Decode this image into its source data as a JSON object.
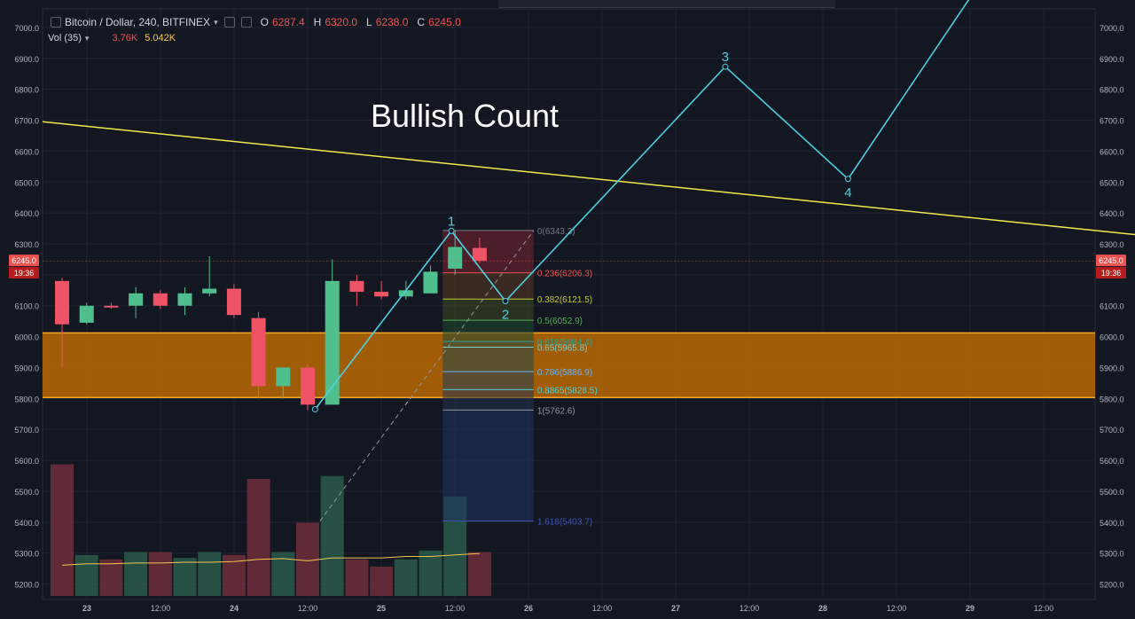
{
  "legend": {
    "symbol": "Bitcoin / Dollar, 240, BITFINEX",
    "open_label": "O",
    "open": "6287.4",
    "high_label": "H",
    "high": "6320.0",
    "low_label": "L",
    "low": "6238.0",
    "close_label": "C",
    "close": "6245.0",
    "vol_label": "Vol (35)",
    "vol_value": "3.76K",
    "vol_ma": "5.042K"
  },
  "colors": {
    "background": "#131722",
    "up": "#4fc08d",
    "down": "#ef5366",
    "trendline": "#f2e94e",
    "wave": "#4dd0e1",
    "zone": "#c86f00",
    "zone_border": "#f5a623"
  },
  "chart_data": {
    "type": "candlestick",
    "title": "Bullish Count",
    "y_tick_labels": [
      "5200.0",
      "5300.0",
      "5400.0",
      "5500.0",
      "5600.0",
      "5700.0",
      "5800.0",
      "5900.0",
      "6000.0",
      "6100.0",
      "6200.0",
      "6300.0",
      "6400.0",
      "6500.0",
      "6600.0",
      "6700.0",
      "6800.0",
      "6900.0",
      "7000.0"
    ],
    "ylim": [
      5150,
      7060
    ],
    "x_tick_labels": [
      "23",
      "12:00",
      "24",
      "12:00",
      "25",
      "12:00",
      "26",
      "12:00",
      "27",
      "12:00",
      "28",
      "12:00",
      "29",
      "12:00"
    ],
    "price_badge": "6245.0",
    "time_badge": "19:36",
    "candles": [
      {
        "o": 6180,
        "h": 6190,
        "l": 5900,
        "c": 6040
      },
      {
        "o": 6045,
        "h": 6110,
        "l": 6040,
        "c": 6100
      },
      {
        "o": 6100,
        "h": 6110,
        "l": 6090,
        "c": 6095
      },
      {
        "o": 6100,
        "h": 6160,
        "l": 6060,
        "c": 6140
      },
      {
        "o": 6140,
        "h": 6150,
        "l": 6090,
        "c": 6100
      },
      {
        "o": 6100,
        "h": 6160,
        "l": 6070,
        "c": 6140
      },
      {
        "o": 6140,
        "h": 6260,
        "l": 6130,
        "c": 6155
      },
      {
        "o": 6155,
        "h": 6170,
        "l": 6060,
        "c": 6070
      },
      {
        "o": 6060,
        "h": 6080,
        "l": 5800,
        "c": 5840
      },
      {
        "o": 5840,
        "h": 5900,
        "l": 5800,
        "c": 5900
      },
      {
        "o": 5900,
        "h": 5910,
        "l": 5762,
        "c": 5780
      },
      {
        "o": 5780,
        "h": 6250,
        "l": 5780,
        "c": 6180
      },
      {
        "o": 6180,
        "h": 6200,
        "l": 6100,
        "c": 6145
      },
      {
        "o": 6145,
        "h": 6180,
        "l": 6120,
        "c": 6130
      },
      {
        "o": 6130,
        "h": 6180,
        "l": 6120,
        "c": 6150
      },
      {
        "o": 6140,
        "h": 6230,
        "l": 6140,
        "c": 6210
      },
      {
        "o": 6220,
        "h": 6343,
        "l": 6200,
        "c": 6290
      },
      {
        "o": 6287,
        "h": 6320,
        "l": 6238,
        "c": 6245
      }
    ],
    "volume": [
      {
        "v": 0.9,
        "up": false
      },
      {
        "v": 0.28,
        "up": true
      },
      {
        "v": 0.25,
        "up": false
      },
      {
        "v": 0.3,
        "up": true
      },
      {
        "v": 0.3,
        "up": false
      },
      {
        "v": 0.26,
        "up": true
      },
      {
        "v": 0.3,
        "up": true
      },
      {
        "v": 0.28,
        "up": false
      },
      {
        "v": 0.8,
        "up": false
      },
      {
        "v": 0.3,
        "up": true
      },
      {
        "v": 0.5,
        "up": false
      },
      {
        "v": 0.82,
        "up": true
      },
      {
        "v": 0.25,
        "up": false
      },
      {
        "v": 0.2,
        "up": false
      },
      {
        "v": 0.25,
        "up": true
      },
      {
        "v": 0.31,
        "up": true
      },
      {
        "v": 0.68,
        "up": true
      },
      {
        "v": 0.3,
        "up": false
      }
    ],
    "volume_ma": [
      0.21,
      0.22,
      0.22,
      0.225,
      0.225,
      0.23,
      0.23,
      0.235,
      0.25,
      0.255,
      0.24,
      0.26,
      0.26,
      0.26,
      0.27,
      0.27,
      0.28,
      0.29
    ],
    "trendline": {
      "x1": 0,
      "y1": 6695,
      "x2": 70.5,
      "y2": 6110
    },
    "zone": {
      "y_low": 5803,
      "y_high": 6012
    },
    "fib_levels": [
      {
        "label": "0(6343.3)",
        "price": 6343.3,
        "color": "#787b86"
      },
      {
        "label": "0.236(6206.3)",
        "price": 6206.3,
        "color": "#ef5350"
      },
      {
        "label": "0.382(6121.5)",
        "price": 6121.5,
        "color": "#c0ca33"
      },
      {
        "label": "0.5(6052.9)",
        "price": 6052.9,
        "color": "#4caf50"
      },
      {
        "label": "0.618(5984.4)",
        "price": 5984.4,
        "color": "#26a69a"
      },
      {
        "label": "0.65(5965.8)",
        "price": 5965.8,
        "color": "#80cbc4"
      },
      {
        "label": "0.786(5886.9)",
        "price": 5886.9,
        "color": "#64b5f6"
      },
      {
        "label": "0.8865(5828.5)",
        "price": 5828.5,
        "color": "#4dd0e1"
      },
      {
        "label": "1(5762.6)",
        "price": 5762.6,
        "color": "#9598a1"
      },
      {
        "label": "1.618(5403.7)",
        "price": 5403.7,
        "color": "#3f51b5"
      }
    ],
    "fib_x_range": [
      15.5,
      19.2
    ],
    "wave_points": [
      {
        "x": 10.3,
        "y": 5765,
        "label": ""
      },
      {
        "x": 15.85,
        "y": 6342,
        "label": "1"
      },
      {
        "x": 18.05,
        "y": 6115,
        "label": "2"
      },
      {
        "x": 27.0,
        "y": 6873,
        "label": "3"
      },
      {
        "x": 32.0,
        "y": 6510,
        "label": "4"
      },
      {
        "x": 37.0,
        "y": 7100,
        "label": ""
      }
    ]
  }
}
